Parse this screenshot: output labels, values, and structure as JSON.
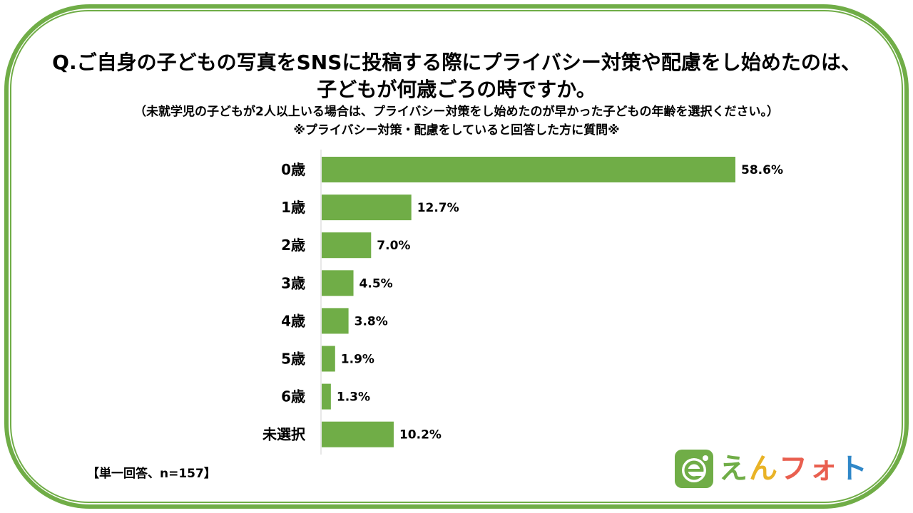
{
  "chart_data": {
    "type": "bar",
    "orientation": "horizontal",
    "title": "Q.ご自身の子どもの写真をSNSに投稿する際にプライバシー対策や配慮をし始めたのは、",
    "title_line2": "子どもが何歳ごろの時ですか。",
    "subtitle": "（未就学児の子どもが2人以上いる場合は、プライバシー対策をし始めたのが早かった子どもの年齢を選択ください。）",
    "subtitle2": "※プライバシー対策・配慮をしていると回答した方に質問※",
    "categories": [
      "0歳",
      "1歳",
      "2歳",
      "3歳",
      "4歳",
      "5歳",
      "6歳",
      "未選択"
    ],
    "values": [
      58.6,
      12.7,
      7.0,
      4.5,
      3.8,
      1.9,
      1.3,
      10.2
    ],
    "data_labels": [
      "58.6%",
      "12.7%",
      "7.0%",
      "4.5%",
      "3.8%",
      "1.9%",
      "1.3%",
      "10.2%"
    ],
    "xlim": [
      0,
      58.6
    ],
    "bar_color": "#70ad47",
    "grid": false,
    "legend": "none"
  },
  "footnote": "【単一回答、n=157】",
  "logo": {
    "letters": [
      "え",
      "ん",
      "フォ",
      "ト"
    ],
    "icon": "e-badge-icon",
    "colors": {
      "green": "#70ad47",
      "yellow": "#e9b327",
      "red": "#e95f4f",
      "blue": "#2f87c8"
    }
  }
}
